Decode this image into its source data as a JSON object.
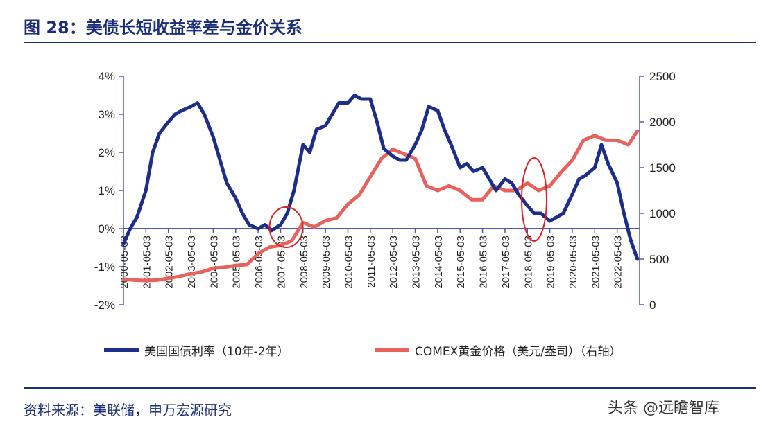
{
  "header": {
    "title": "图 28：美债长短收益率差与金价关系"
  },
  "footer": {
    "source": "资料来源：美联储，申万宏源研究",
    "watermark": "头条 @远瞻智库"
  },
  "chart_data": {
    "type": "line",
    "left_axis": {
      "ticks": [
        "4%",
        "3%",
        "2%",
        "1%",
        "0%",
        "-1%",
        "-2%"
      ],
      "ylim": [
        -2,
        4
      ]
    },
    "right_axis": {
      "ticks": [
        "2500",
        "2000",
        "1500",
        "1000",
        "500",
        "0"
      ],
      "ylim": [
        0,
        2500
      ]
    },
    "x_ticks": [
      "2000-05-03",
      "2001-05-03",
      "2002-05-03",
      "2003-05-03",
      "2004-05-03",
      "2005-05-03",
      "2006-05-03",
      "2007-05-03",
      "2008-05-03",
      "2009-05-03",
      "2010-05-03",
      "2011-05-03",
      "2012-05-03",
      "2013-05-03",
      "2014-05-03",
      "2015-05-03",
      "2016-05-03",
      "2017-05-03",
      "2018-05-03",
      "2019-05-03",
      "2020-05-03",
      "2021-05-03",
      "2022-05-03"
    ],
    "x_range": [
      2000.0,
      2023.0
    ],
    "series": [
      {
        "name": "美国国债利率（10年-2年）",
        "axis": "left",
        "color": "#1c2e8a",
        "x": [
          2000.0,
          2000.3,
          2000.6,
          2001.0,
          2001.3,
          2001.6,
          2002.0,
          2002.3,
          2002.6,
          2003.0,
          2003.3,
          2003.6,
          2004.0,
          2004.3,
          2004.6,
          2005.0,
          2005.3,
          2005.6,
          2006.0,
          2006.3,
          2006.6,
          2007.0,
          2007.3,
          2007.6,
          2008.0,
          2008.3,
          2008.6,
          2009.0,
          2009.3,
          2009.6,
          2010.0,
          2010.3,
          2010.6,
          2011.0,
          2011.3,
          2011.6,
          2012.0,
          2012.3,
          2012.6,
          2013.0,
          2013.3,
          2013.6,
          2014.0,
          2014.3,
          2014.6,
          2015.0,
          2015.3,
          2015.6,
          2016.0,
          2016.3,
          2016.6,
          2017.0,
          2017.3,
          2017.6,
          2018.0,
          2018.3,
          2018.6,
          2019.0,
          2019.3,
          2019.6,
          2020.0,
          2020.3,
          2020.6,
          2021.0,
          2021.3,
          2021.6,
          2022.0,
          2022.3,
          2022.6,
          2022.9
        ],
        "y": [
          -0.4,
          0.0,
          0.3,
          1.0,
          2.0,
          2.5,
          2.8,
          3.0,
          3.1,
          3.2,
          3.3,
          3.0,
          2.4,
          1.8,
          1.2,
          0.8,
          0.4,
          0.1,
          0.0,
          0.1,
          -0.05,
          0.1,
          0.4,
          1.0,
          2.2,
          2.0,
          2.6,
          2.7,
          3.0,
          3.3,
          3.3,
          3.5,
          3.4,
          3.4,
          2.8,
          2.1,
          1.9,
          1.8,
          1.8,
          2.2,
          2.6,
          3.2,
          3.1,
          2.6,
          2.2,
          1.6,
          1.7,
          1.5,
          1.6,
          1.3,
          1.0,
          1.3,
          1.2,
          0.9,
          0.6,
          0.4,
          0.4,
          0.2,
          0.3,
          0.4,
          0.9,
          1.3,
          1.4,
          1.6,
          2.2,
          1.7,
          1.2,
          0.4,
          -0.3,
          -0.8
        ]
      },
      {
        "name": "COMEX黄金价格（美元/盎司）（右轴）",
        "axis": "right",
        "color": "#e8615c",
        "x": [
          2000.0,
          2000.5,
          2001.0,
          2001.5,
          2002.0,
          2002.5,
          2003.0,
          2003.5,
          2004.0,
          2004.5,
          2005.0,
          2005.5,
          2006.0,
          2006.5,
          2007.0,
          2007.5,
          2008.0,
          2008.5,
          2009.0,
          2009.5,
          2010.0,
          2010.5,
          2011.0,
          2011.5,
          2012.0,
          2012.5,
          2013.0,
          2013.5,
          2014.0,
          2014.5,
          2015.0,
          2015.5,
          2016.0,
          2016.5,
          2017.0,
          2017.5,
          2018.0,
          2018.5,
          2019.0,
          2019.5,
          2020.0,
          2020.5,
          2021.0,
          2021.5,
          2022.0,
          2022.5,
          2022.9
        ],
        "y": [
          280,
          270,
          265,
          270,
          290,
          310,
          340,
          360,
          400,
          410,
          430,
          440,
          560,
          630,
          650,
          700,
          900,
          850,
          920,
          950,
          1100,
          1200,
          1400,
          1600,
          1700,
          1650,
          1600,
          1300,
          1250,
          1300,
          1250,
          1150,
          1150,
          1300,
          1250,
          1250,
          1330,
          1250,
          1300,
          1450,
          1580,
          1800,
          1850,
          1800,
          1800,
          1750,
          1900
        ]
      }
    ]
  }
}
